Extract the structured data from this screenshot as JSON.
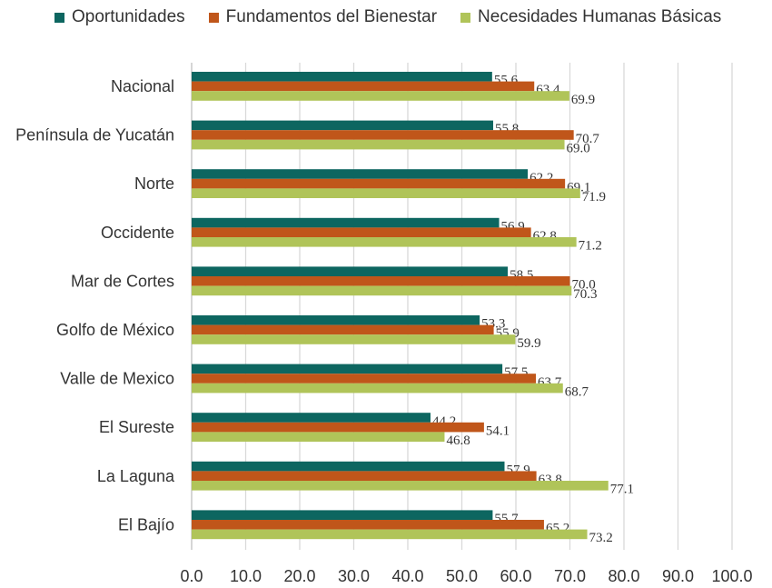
{
  "chart_data": {
    "type": "bar",
    "orientation": "horizontal",
    "title": "",
    "xlabel": "",
    "ylabel": "",
    "xlim": [
      0,
      100
    ],
    "ticks": [
      "0.0",
      "10.0",
      "20.0",
      "30.0",
      "40.0",
      "50.0",
      "60.0",
      "70.0",
      "80.0",
      "90.0",
      "100.0"
    ],
    "categories": [
      "Nacional",
      "Península de Yucatán",
      "Norte",
      "Occidente",
      "Mar de Cortes",
      "Golfo de México",
      "Valle de Mexico",
      "El Sureste",
      "La Laguna",
      "El Bajío"
    ],
    "series": [
      {
        "name": "Oportunidades",
        "color": "#0d6660",
        "values": [
          55.6,
          55.8,
          62.2,
          56.9,
          58.5,
          53.3,
          57.5,
          44.2,
          57.9,
          55.7
        ],
        "labels": [
          "55.6",
          "55.8",
          "62.2",
          "56.9",
          "58.5",
          "53.3",
          "57.5",
          "44.2",
          "57.9",
          "55.7"
        ]
      },
      {
        "name": "Fundamentos del Bienestar",
        "color": "#c0561a",
        "values": [
          63.4,
          70.7,
          69.1,
          62.8,
          70.0,
          55.9,
          63.7,
          54.1,
          63.8,
          65.2
        ],
        "labels": [
          "63.4",
          "70.7",
          "69.1",
          "62.8",
          "70.0",
          "55.9",
          "63.7",
          "54.1",
          "63.8",
          "65.2"
        ]
      },
      {
        "name": "Necesidades Humanas Básicas",
        "color": "#b0c459",
        "values": [
          69.9,
          69.0,
          71.9,
          71.2,
          70.3,
          59.9,
          68.7,
          46.8,
          77.1,
          73.2
        ],
        "labels": [
          "69.9",
          "69.0",
          "71.9",
          "71.2",
          "70.3",
          "59.9",
          "68.7",
          "46.8",
          "77.1",
          "73.2"
        ]
      }
    ],
    "grid": true,
    "legend": "top"
  }
}
